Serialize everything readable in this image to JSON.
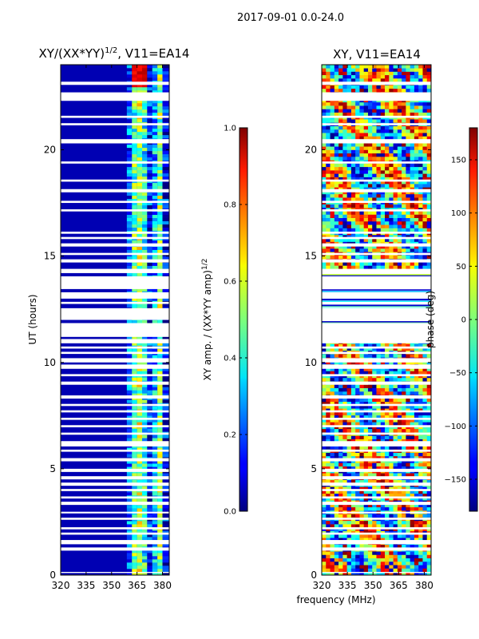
{
  "figure": {
    "suptitle": "2017-09-01 0.0-24.0",
    "xlabel": "frequency (MHz)"
  },
  "chart_data": [
    {
      "type": "heatmap",
      "id": "amp",
      "title": "XY/(XX*YY)",
      "title_exponent": "1/2",
      "title_suffix": ", V11=EA14",
      "xlabel": "frequency (MHz)",
      "ylabel": "UT (hours)",
      "xlim": [
        320,
        384
      ],
      "ylim": [
        0,
        24
      ],
      "xticks": [
        320,
        335,
        350,
        365,
        380
      ],
      "yticks": [
        0,
        5,
        10,
        15,
        20
      ],
      "colorbar": {
        "label": "XY amp. / (XX*YY amp)",
        "label_exponent": "1/2",
        "range": [
          0.0,
          1.0
        ],
        "ticks": [
          "0.0",
          "0.2",
          "0.4",
          "0.6",
          "0.8",
          "1.0"
        ],
        "colormap": "jet"
      },
      "bands": [
        {
          "freq": [
            320,
            359
          ],
          "value": 0.05
        },
        {
          "freq": [
            359,
            362
          ],
          "value": 0.22
        },
        {
          "freq": [
            362,
            365
          ],
          "value": 0.45
        },
        {
          "freq": [
            365,
            368
          ],
          "value": 0.55
        },
        {
          "freq": [
            368,
            371
          ],
          "value": 0.4
        },
        {
          "freq": [
            371,
            374
          ],
          "value": 0.15
        },
        {
          "freq": [
            374,
            377
          ],
          "value": 0.3
        },
        {
          "freq": [
            377,
            380
          ],
          "value": 0.5
        },
        {
          "freq": [
            380,
            384
          ],
          "value": 0.12
        }
      ]
    },
    {
      "type": "heatmap",
      "id": "phase",
      "title": "XY, V11=EA14",
      "xlabel": "frequency (MHz)",
      "ylabel": "",
      "xlim": [
        320,
        384
      ],
      "ylim": [
        0,
        24
      ],
      "xticks": [
        320,
        335,
        350,
        365,
        380
      ],
      "yticks": [
        0,
        5,
        10,
        15,
        20
      ],
      "colorbar": {
        "label": "phase (deg)",
        "range": [
          -180,
          180
        ],
        "ticks": [
          "−150",
          "−100",
          "−50",
          "0",
          "50",
          "100",
          "150"
        ],
        "colormap": "jet"
      }
    }
  ],
  "flagged_hours": [
    [
      0.1,
      0.15
    ],
    [
      1.15,
      1.3
    ],
    [
      1.45,
      1.65
    ],
    [
      1.9,
      2.0
    ],
    [
      2.15,
      2.25
    ],
    [
      2.6,
      2.7
    ],
    [
      2.9,
      2.98
    ],
    [
      3.3,
      3.45
    ],
    [
      3.6,
      3.7
    ],
    [
      3.95,
      4.05
    ],
    [
      4.2,
      4.35
    ],
    [
      4.5,
      4.65
    ],
    [
      4.85,
      5.0
    ],
    [
      5.35,
      5.5
    ],
    [
      5.8,
      5.9
    ],
    [
      6.05,
      6.3
    ],
    [
      6.6,
      6.7
    ],
    [
      6.95,
      7.05
    ],
    [
      7.3,
      7.4
    ],
    [
      7.65,
      7.75
    ],
    [
      7.95,
      8.05
    ],
    [
      8.3,
      8.45
    ],
    [
      8.95,
      9.1
    ],
    [
      9.35,
      9.45
    ],
    [
      9.7,
      9.9
    ],
    [
      10.0,
      10.2
    ],
    [
      10.4,
      10.5
    ],
    [
      10.65,
      10.75
    ],
    [
      10.9,
      11.1
    ],
    [
      11.2,
      11.85
    ],
    [
      12.0,
      12.55
    ],
    [
      12.75,
      12.85
    ],
    [
      13.0,
      13.3
    ],
    [
      13.45,
      14.05
    ],
    [
      14.2,
      14.4
    ],
    [
      14.7,
      14.85
    ],
    [
      15.05,
      15.15
    ],
    [
      15.45,
      15.6
    ],
    [
      15.8,
      15.9
    ],
    [
      16.05,
      16.15
    ],
    [
      17.1,
      17.2
    ],
    [
      17.5,
      17.6
    ],
    [
      18.0,
      18.15
    ],
    [
      18.5,
      18.6
    ],
    [
      19.35,
      19.45
    ],
    [
      20.3,
      20.5
    ],
    [
      21.15,
      21.25
    ],
    [
      21.5,
      21.6
    ],
    [
      22.3,
      22.7
    ],
    [
      23.05,
      23.2
    ]
  ]
}
